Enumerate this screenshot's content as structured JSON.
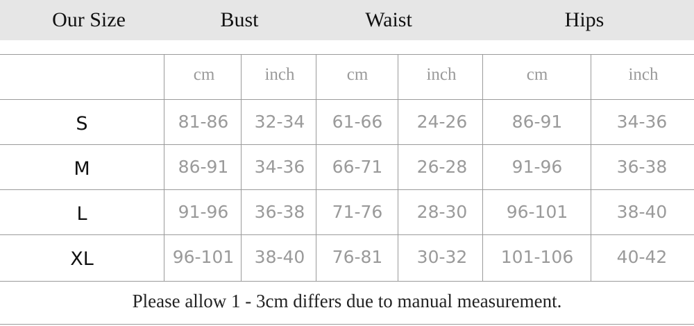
{
  "header": {
    "our_size": "Our Size",
    "bust": "Bust",
    "waist": "Waist",
    "hips": "Hips"
  },
  "units": [
    "cm",
    "inch",
    "cm",
    "inch",
    "cm",
    "inch"
  ],
  "rows": [
    {
      "size": "S",
      "values": [
        "81-86",
        "32-34",
        "61-66",
        "24-26",
        "86-91",
        "34-36"
      ]
    },
    {
      "size": "M",
      "values": [
        "86-91",
        "34-36",
        "66-71",
        "26-28",
        "91-96",
        "36-38"
      ]
    },
    {
      "size": "L",
      "values": [
        "91-96",
        "36-38",
        "71-76",
        "28-30",
        "96-101",
        "38-40"
      ]
    },
    {
      "size": "XL",
      "values": [
        "96-101",
        "38-40",
        "76-81",
        "30-32",
        "101-106",
        "40-42"
      ]
    }
  ],
  "note": "Please allow 1 - 3cm differs due to manual measurement.",
  "colors": {
    "header_band": "#e6e6e6",
    "grid_line": "#9a9a9a",
    "value_text": "#9a9a9a"
  }
}
